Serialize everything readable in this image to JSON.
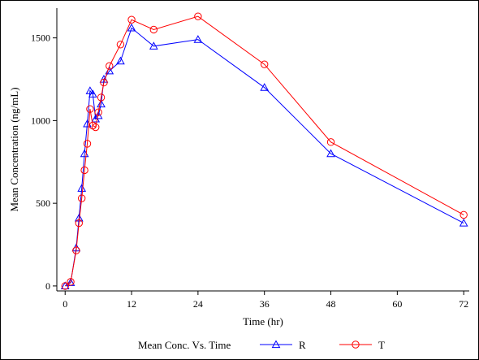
{
  "chart_data": {
    "type": "line",
    "title": "",
    "xlabel": "Time (hr)",
    "ylabel": "Mean Concentration (ng/mL)",
    "xlim": [
      -1.5,
      73
    ],
    "ylim": [
      -30,
      1680
    ],
    "xticks": [
      0,
      12,
      24,
      36,
      48,
      60,
      72
    ],
    "yticks": [
      0,
      500,
      1000,
      1500
    ],
    "grid": false,
    "legend_title": "Mean Conc. Vs. Time",
    "legend_position": "bottom",
    "series": [
      {
        "name": "R",
        "color": "#0000ff",
        "marker": "triangle",
        "x": [
          0,
          1,
          2,
          2.5,
          3,
          3.5,
          4,
          4.5,
          5,
          5.5,
          6,
          6.5,
          7,
          8,
          10,
          12,
          16,
          24,
          36,
          48,
          72
        ],
        "y": [
          0,
          20,
          230,
          410,
          590,
          800,
          980,
          1180,
          1160,
          1010,
          1030,
          1100,
          1250,
          1300,
          1360,
          1560,
          1450,
          1490,
          1200,
          800,
          380
        ]
      },
      {
        "name": "T",
        "color": "#ff0000",
        "marker": "circle",
        "x": [
          0,
          1,
          2,
          2.5,
          3,
          3.5,
          4,
          4.5,
          5,
          5.5,
          6,
          6.5,
          7,
          8,
          10,
          12,
          16,
          24,
          36,
          48,
          72
        ],
        "y": [
          0,
          25,
          215,
          380,
          530,
          700,
          860,
          1070,
          970,
          960,
          1050,
          1140,
          1230,
          1330,
          1460,
          1610,
          1550,
          1630,
          1340,
          870,
          430
        ]
      }
    ]
  }
}
